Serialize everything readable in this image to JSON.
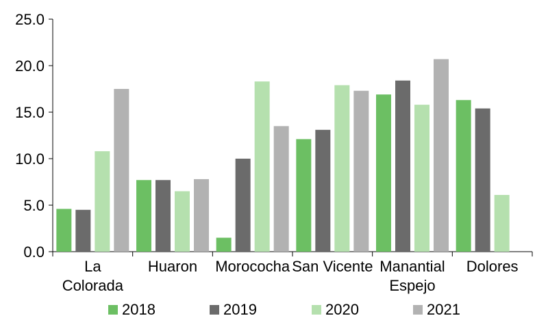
{
  "chart_data": {
    "type": "bar",
    "categories": [
      [
        "La",
        "Colorada"
      ],
      [
        "Huaron"
      ],
      [
        "Morococha"
      ],
      [
        "San Vicente"
      ],
      [
        "Manantial",
        "Espejo"
      ],
      [
        "Dolores"
      ]
    ],
    "series": [
      {
        "name": "2018",
        "color": "#6cbf63",
        "values": [
          4.6,
          7.7,
          1.5,
          12.1,
          16.9,
          16.3
        ]
      },
      {
        "name": "2019",
        "color": "#6b6b6b",
        "values": [
          4.5,
          7.7,
          10.0,
          13.1,
          18.4,
          15.4
        ]
      },
      {
        "name": "2020",
        "color": "#b5e0ae",
        "values": [
          10.8,
          6.5,
          18.3,
          17.9,
          15.8,
          6.1
        ]
      },
      {
        "name": "2021",
        "color": "#b2b2b2",
        "values": [
          17.5,
          7.8,
          13.5,
          17.3,
          20.7,
          null
        ]
      }
    ],
    "ylim": [
      0,
      25
    ],
    "yticks": [
      "0.0",
      "5.0",
      "10.0",
      "15.0",
      "20.0",
      "25.0"
    ],
    "legend_position": "bottom",
    "grid": false
  }
}
